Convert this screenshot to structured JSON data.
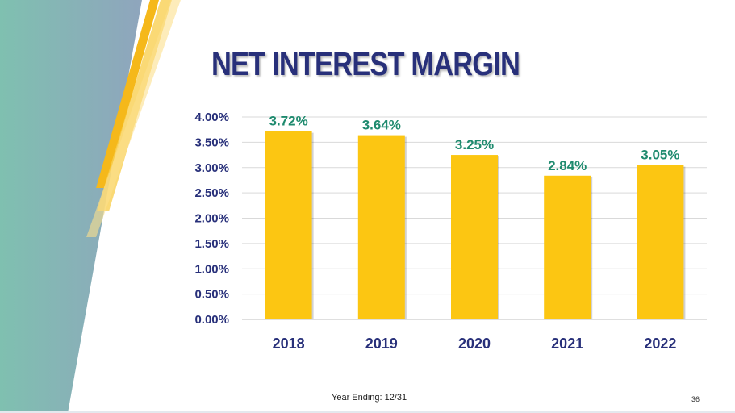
{
  "slide": {
    "title": "NET INTEREST MARGIN",
    "footer": "Year Ending: 12/31",
    "page_number": "36"
  },
  "colors": {
    "title": "#28307a",
    "bar": "#fcc612",
    "data_label": "#1e8a6e",
    "axis_text": "#28307a",
    "gridline": "#d9d9d9",
    "teal": "#7fc0b0",
    "slate": "#8fa5bd",
    "gold": "#f5b81a"
  },
  "chart_data": {
    "type": "bar",
    "title": "NET INTEREST MARGIN",
    "xlabel": "Year Ending: 12/31",
    "ylabel": "",
    "categories": [
      "2018",
      "2019",
      "2020",
      "2021",
      "2022"
    ],
    "values": [
      3.72,
      3.64,
      3.25,
      2.84,
      3.05
    ],
    "data_labels": [
      "3.72%",
      "3.64%",
      "3.25%",
      "2.84%",
      "3.05%"
    ],
    "ylim": [
      0,
      4
    ],
    "yticks": [
      0,
      0.5,
      1,
      1.5,
      2,
      2.5,
      3,
      3.5,
      4
    ],
    "ytick_labels": [
      "0.00%",
      "0.50%",
      "1.00%",
      "1.50%",
      "2.00%",
      "2.50%",
      "3.00%",
      "3.50%",
      "4.00%"
    ],
    "grid": true,
    "legend": "none"
  }
}
